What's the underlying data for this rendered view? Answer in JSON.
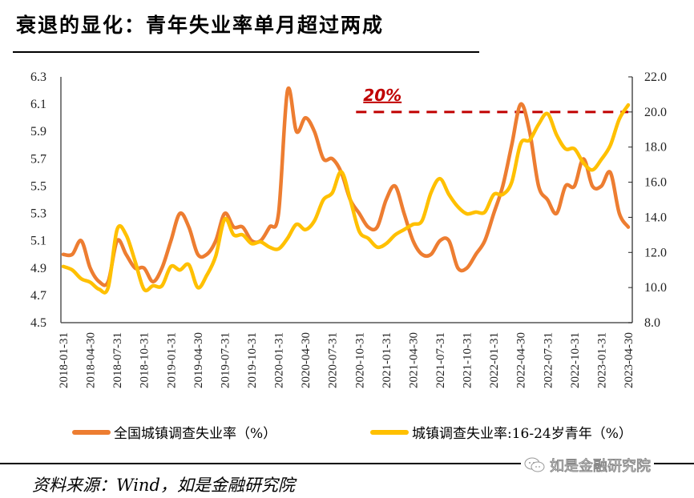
{
  "title": "衰退的显化：青年失业率单月超过两成",
  "source": "资料来源：Wind，如是金融研究院",
  "watermark": "如是金融研究院",
  "chart_data": {
    "type": "line",
    "title": "衰退的显化：青年失业率单月超过两成",
    "xlabel": "",
    "x_ticks": [
      "2018-01-31",
      "2018-04-30",
      "2018-07-31",
      "2018-10-31",
      "2019-01-31",
      "2019-04-30",
      "2019-07-31",
      "2019-10-31",
      "2020-01-31",
      "2020-04-30",
      "2020-07-31",
      "2020-10-31",
      "2021-01-31",
      "2021-04-30",
      "2021-07-31",
      "2021-10-31",
      "2022-01-31",
      "2022-04-30",
      "2022-07-31",
      "2022-10-31",
      "2023-01-31",
      "2023-04-30"
    ],
    "x_start": "2018-01",
    "x_end": "2023-04",
    "frequency": "monthly",
    "y_left": {
      "label": "",
      "lim": [
        4.5,
        6.3
      ],
      "ticks": [
        "6.3",
        "6.1",
        "5.9",
        "5.7",
        "5.5",
        "5.3",
        "5.1",
        "4.9",
        "4.7",
        "4.5"
      ]
    },
    "y_right": {
      "label": "",
      "lim": [
        8.0,
        22.0
      ],
      "ticks": [
        "22.0",
        "20.0",
        "18.0",
        "16.0",
        "14.0",
        "12.0",
        "10.0",
        "8.0"
      ]
    },
    "series": [
      {
        "name": "全国城镇调查失业率（%）",
        "axis": "left",
        "color": "#ED7D31",
        "values": [
          5.0,
          5.0,
          5.1,
          4.9,
          4.8,
          4.8,
          5.1,
          5.0,
          4.9,
          4.9,
          4.8,
          4.9,
          5.1,
          5.3,
          5.2,
          5.0,
          5.0,
          5.1,
          5.3,
          5.2,
          5.2,
          5.1,
          5.1,
          5.2,
          5.3,
          6.2,
          5.9,
          6.0,
          5.9,
          5.7,
          5.7,
          5.6,
          5.4,
          5.3,
          5.2,
          5.2,
          5.4,
          5.5,
          5.3,
          5.1,
          5.0,
          5.0,
          5.1,
          5.1,
          4.9,
          4.9,
          5.0,
          5.1,
          5.3,
          5.5,
          5.8,
          6.1,
          5.9,
          5.5,
          5.4,
          5.3,
          5.5,
          5.5,
          5.7,
          5.5,
          5.5,
          5.6,
          5.3,
          5.2
        ]
      },
      {
        "name": "城镇调查失业率:16-24岁青年（%）",
        "axis": "right",
        "color": "#FFC000",
        "values": [
          11.2,
          11.0,
          10.5,
          10.3,
          9.9,
          10.0,
          13.3,
          13.0,
          11.5,
          9.9,
          10.1,
          10.1,
          11.2,
          11.0,
          11.3,
          10.0,
          10.7,
          11.8,
          13.9,
          13.0,
          13.0,
          12.5,
          12.6,
          12.3,
          12.2,
          12.8,
          13.6,
          13.3,
          13.8,
          15.0,
          15.4,
          16.6,
          15.0,
          13.2,
          12.8,
          12.3,
          12.5,
          13.0,
          13.3,
          13.6,
          13.8,
          15.4,
          16.2,
          15.3,
          14.6,
          14.2,
          14.3,
          14.3,
          15.3,
          15.3,
          16.0,
          18.2,
          18.4,
          19.3,
          19.9,
          18.7,
          17.9,
          17.9,
          17.1,
          16.7,
          17.3,
          18.1,
          19.6,
          20.4
        ]
      }
    ],
    "annotations": [
      {
        "type": "hline",
        "axis": "right",
        "value": 20.0,
        "from": "2020-10",
        "to": "2023-04",
        "style": "dashed",
        "color": "#C00000"
      },
      {
        "type": "text",
        "text": "20%",
        "color": "#C00000",
        "style": "bold-italic-underline"
      }
    ],
    "legend": {
      "position": "bottom"
    },
    "grid": false
  }
}
